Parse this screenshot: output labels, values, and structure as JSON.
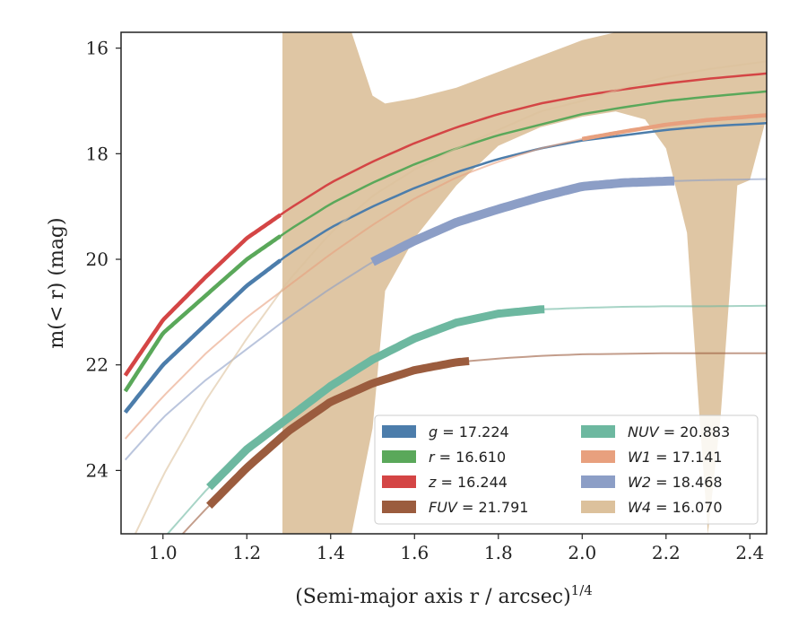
{
  "chart_data": {
    "type": "line",
    "xlabel": "(Semi-major axis r / arcsec)",
    "xlabel_sup": "1/4",
    "ylabel": "m(< r) (mag)",
    "xlim": [
      0.9,
      2.44
    ],
    "ylim": [
      25.2,
      15.7
    ],
    "y_inverted": true,
    "x_ticks": [
      1.0,
      1.2,
      1.4,
      1.6,
      1.8,
      2.0,
      2.2,
      2.4
    ],
    "x_tick_labels": [
      "1.0",
      "1.2",
      "1.4",
      "1.6",
      "1.8",
      "2.0",
      "2.2",
      "2.4"
    ],
    "y_ticks": [
      16,
      18,
      20,
      22,
      24
    ],
    "y_tick_labels": [
      "16",
      "18",
      "20",
      "22",
      "24"
    ],
    "grid": false,
    "legend_position": "lower-right",
    "series": [
      {
        "name": "g = 17.224",
        "var": "g",
        "value": "17.224",
        "color": "#4c7dab",
        "x": [
          0.91,
          1.0,
          1.1,
          1.2,
          1.3,
          1.4,
          1.5,
          1.6,
          1.7,
          1.8,
          1.9,
          2.0,
          2.1,
          2.2,
          2.3,
          2.44
        ],
        "y": [
          22.9,
          22.0,
          21.25,
          20.5,
          19.9,
          19.4,
          19.0,
          18.65,
          18.35,
          18.1,
          17.9,
          17.75,
          17.65,
          17.55,
          17.48,
          17.42
        ],
        "thick_until": 1.28
      },
      {
        "name": "r = 16.610",
        "var": "r",
        "value": "16.610",
        "color": "#5aa85a",
        "x": [
          0.91,
          1.0,
          1.1,
          1.2,
          1.3,
          1.4,
          1.5,
          1.6,
          1.7,
          1.8,
          1.9,
          2.0,
          2.1,
          2.2,
          2.3,
          2.44
        ],
        "y": [
          22.5,
          21.4,
          20.7,
          20.0,
          19.45,
          18.95,
          18.55,
          18.2,
          17.9,
          17.65,
          17.45,
          17.25,
          17.12,
          17.0,
          16.92,
          16.82
        ],
        "thick_until": 1.28
      },
      {
        "name": "z = 16.244",
        "var": "z",
        "value": "16.244",
        "color": "#d44545",
        "x": [
          0.91,
          1.0,
          1.1,
          1.2,
          1.3,
          1.4,
          1.5,
          1.6,
          1.7,
          1.8,
          1.9,
          2.0,
          2.1,
          2.2,
          2.3,
          2.44
        ],
        "y": [
          22.2,
          21.15,
          20.35,
          19.6,
          19.05,
          18.55,
          18.15,
          17.8,
          17.5,
          17.25,
          17.05,
          16.9,
          16.78,
          16.67,
          16.58,
          16.48
        ],
        "thick_until": 1.28
      },
      {
        "name": "FUV = 21.791",
        "var": "FUV",
        "value": "21.791",
        "color": "#9b5c3e",
        "x": [
          0.91,
          1.0,
          1.1,
          1.2,
          1.3,
          1.4,
          1.5,
          1.6,
          1.7,
          1.8,
          1.9,
          2.0,
          2.1,
          2.2,
          2.3,
          2.44
        ],
        "y": [
          26.3,
          25.6,
          24.75,
          23.95,
          23.25,
          22.7,
          22.35,
          22.1,
          21.95,
          21.88,
          21.83,
          21.8,
          21.79,
          21.78,
          21.78,
          21.78
        ],
        "thick_from": 1.11,
        "thick_until": 1.73
      },
      {
        "name": "NUV = 20.883",
        "var": "NUV",
        "value": "20.883",
        "color": "#6db8a0",
        "x": [
          0.91,
          1.0,
          1.1,
          1.2,
          1.3,
          1.4,
          1.5,
          1.6,
          1.7,
          1.8,
          1.9,
          2.0,
          2.1,
          2.2,
          2.3,
          2.44
        ],
        "y": [
          26.0,
          25.3,
          24.4,
          23.6,
          23.0,
          22.4,
          21.9,
          21.5,
          21.2,
          21.03,
          20.95,
          20.92,
          20.9,
          20.89,
          20.89,
          20.88
        ],
        "thick_from": 1.11,
        "thick_until": 1.91
      },
      {
        "name": "W1 = 17.141",
        "var": "W1",
        "value": "17.141",
        "color": "#e8a07e",
        "x": [
          0.91,
          1.0,
          1.1,
          1.2,
          1.3,
          1.4,
          1.5,
          1.6,
          1.7,
          1.8,
          1.9,
          2.0,
          2.1,
          2.2,
          2.3,
          2.44
        ],
        "y": [
          23.4,
          22.6,
          21.8,
          21.1,
          20.5,
          19.9,
          19.35,
          18.85,
          18.45,
          18.15,
          17.9,
          17.72,
          17.58,
          17.45,
          17.36,
          17.27
        ],
        "thick_from": 2.0,
        "thick_until": 2.44
      },
      {
        "name": "W2 = 18.468",
        "var": "W2",
        "value": "18.468",
        "color": "#8c9ec6",
        "x": [
          0.91,
          1.0,
          1.1,
          1.2,
          1.3,
          1.4,
          1.5,
          1.6,
          1.7,
          1.8,
          1.9,
          2.0,
          2.1,
          2.2,
          2.3,
          2.44
        ],
        "y": [
          23.8,
          23.0,
          22.3,
          21.7,
          21.1,
          20.55,
          20.05,
          19.65,
          19.3,
          19.05,
          18.82,
          18.62,
          18.55,
          18.52,
          18.5,
          18.48
        ],
        "thick_from": 1.5,
        "thick_until": 2.22
      },
      {
        "name": "W4 = 16.070",
        "var": "W4",
        "value": "16.070",
        "color": "#dcc19c",
        "x": [
          0.91,
          1.0,
          1.1,
          1.2,
          1.3,
          1.4,
          1.5,
          1.6,
          1.7,
          1.8,
          1.9,
          2.0,
          2.1,
          2.2,
          2.3,
          2.44
        ],
        "y": [
          25.6,
          24.1,
          22.7,
          21.5,
          20.4,
          19.5,
          18.8,
          18.3,
          17.9,
          17.55,
          17.2,
          17.0,
          16.75,
          16.55,
          16.4,
          16.25
        ],
        "band_x": [
          1.285,
          1.3,
          1.35,
          1.4,
          1.45,
          1.5,
          1.53,
          1.6,
          1.7,
          1.8,
          1.9,
          2.0,
          2.08,
          2.15,
          2.2,
          2.25,
          2.28,
          2.3,
          2.33,
          2.37,
          2.4,
          2.44
        ],
        "band_upper": [
          15.7,
          15.7,
          15.7,
          15.7,
          15.7,
          16.9,
          17.05,
          16.95,
          16.75,
          16.45,
          16.15,
          15.85,
          15.7,
          15.7,
          15.7,
          15.7,
          15.7,
          15.7,
          15.7,
          15.7,
          15.7,
          15.7
        ],
        "band_lower": [
          25.2,
          25.2,
          25.2,
          25.2,
          25.2,
          23.2,
          20.6,
          19.6,
          18.6,
          17.85,
          17.5,
          17.3,
          17.2,
          17.35,
          17.9,
          19.5,
          23.0,
          25.2,
          23.0,
          18.6,
          18.5,
          17.3
        ]
      }
    ]
  }
}
